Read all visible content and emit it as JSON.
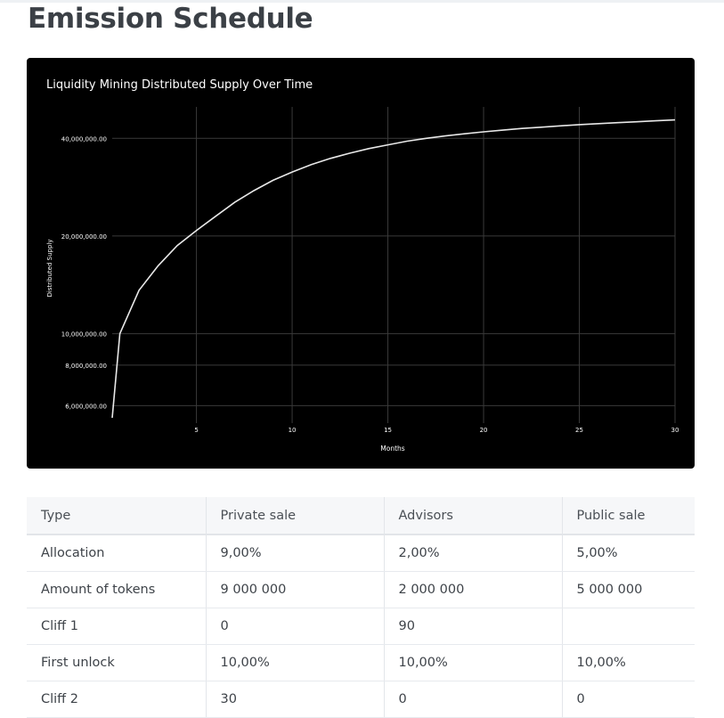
{
  "page": {
    "title": "Emission Schedule"
  },
  "chart_data": {
    "type": "line",
    "title": "Liquidity Mining Distributed Supply Over Time",
    "xlabel": "Months",
    "ylabel": "Distributed Supply",
    "x_ticks": [
      5,
      10,
      15,
      20,
      25,
      30
    ],
    "y_ticks": [
      {
        "value": 6000000,
        "label": "6,000,000.00"
      },
      {
        "value": 8000000,
        "label": "8,000,000.00"
      },
      {
        "value": 10000000,
        "label": "10,000,000.00"
      },
      {
        "value": 20000000,
        "label": "20,000,000.00"
      },
      {
        "value": 40000000,
        "label": "40,000,000.00"
      }
    ],
    "y_scale": "log",
    "grid": true,
    "line_color": "#e8e8e8",
    "background": "#000000",
    "series": [
      {
        "x": [
          0.6,
          1,
          2,
          3,
          4,
          5,
          6,
          7,
          8,
          9,
          10,
          11,
          12,
          13,
          14,
          15,
          16,
          17,
          18,
          19,
          20,
          21,
          22,
          23,
          24,
          25,
          26,
          27,
          28,
          29,
          30
        ],
        "values": [
          5500000,
          10000000,
          13600000,
          16200000,
          18700000,
          20800000,
          23000000,
          25400000,
          27600000,
          29700000,
          31500000,
          33200000,
          34700000,
          36000000,
          37200000,
          38200000,
          39200000,
          40000000,
          40700000,
          41300000,
          41900000,
          42400000,
          42900000,
          43300000,
          43700000,
          44100000,
          44400000,
          44700000,
          45000000,
          45300000,
          45600000
        ]
      }
    ]
  },
  "table": {
    "headers": [
      "Type",
      "Private sale",
      "Advisors",
      "Public sale"
    ],
    "rows": [
      [
        "Allocation",
        "9,00%",
        "2,00%",
        "5,00%"
      ],
      [
        "Amount of tokens",
        "9 000 000",
        "2 000 000",
        "5 000 000"
      ],
      [
        "Cliff 1",
        "0",
        "90",
        ""
      ],
      [
        "First unlock",
        "10,00%",
        "10,00%",
        "10,00%"
      ],
      [
        "Cliff 2",
        "30",
        "0",
        "0"
      ]
    ]
  }
}
